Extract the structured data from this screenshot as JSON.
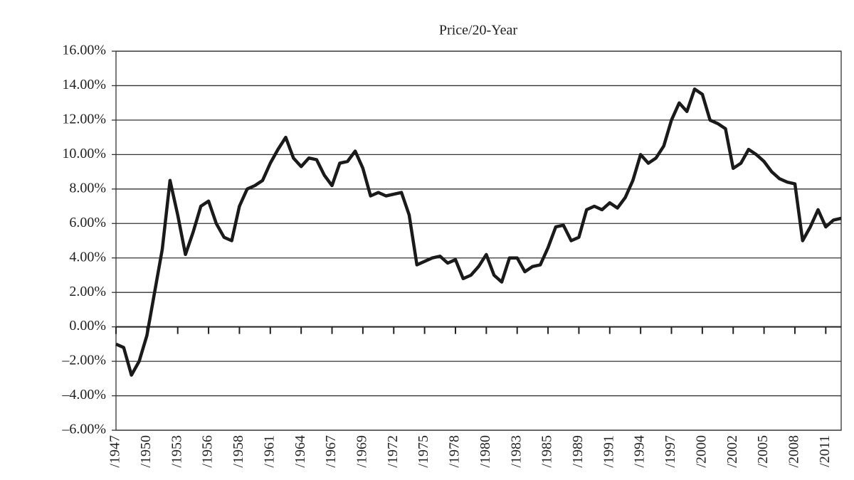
{
  "chart_data": {
    "type": "line",
    "title": "Price/20-Year",
    "categories": [
      "/1947",
      null,
      null,
      null,
      "/1950",
      null,
      null,
      null,
      "/1953",
      null,
      null,
      null,
      "/1956",
      null,
      null,
      null,
      "/1958",
      null,
      null,
      null,
      "/1961",
      null,
      null,
      null,
      "/1964",
      null,
      null,
      null,
      "/1967",
      null,
      null,
      null,
      "/1969",
      null,
      null,
      null,
      "/1972",
      null,
      null,
      null,
      "/1975",
      null,
      null,
      null,
      "/1978",
      null,
      null,
      null,
      "/1980",
      null,
      null,
      null,
      "/1983",
      null,
      null,
      null,
      "/1985",
      null,
      null,
      null,
      "/1989",
      null,
      null,
      null,
      "/1991",
      null,
      null,
      null,
      "/1994",
      null,
      null,
      null,
      "/1997",
      null,
      null,
      null,
      "/2000",
      null,
      null,
      null,
      "/2002",
      null,
      null,
      null,
      "/2005",
      null,
      null,
      null,
      "/2008",
      null,
      null,
      null,
      "/2011",
      null,
      null
    ],
    "values": [
      -1,
      -1.2,
      -2.8,
      -2.0,
      -0.5,
      2.0,
      4.5,
      8.5,
      6.5,
      4.2,
      5.5,
      7.0,
      7.3,
      6.0,
      5.2,
      5.0,
      7.0,
      8.0,
      8.2,
      8.5,
      9.5,
      10.3,
      11.0,
      9.8,
      9.3,
      9.8,
      9.7,
      8.8,
      8.2,
      9.5,
      9.6,
      10.2,
      9.2,
      7.6,
      7.8,
      7.6,
      7.7,
      7.8,
      6.5,
      3.6,
      3.8,
      4.0,
      4.1,
      3.7,
      3.9,
      2.8,
      3.0,
      3.5,
      4.2,
      3.0,
      2.6,
      4.0,
      4.0,
      3.2,
      3.5,
      3.6,
      4.6,
      5.8,
      5.9,
      5.0,
      5.2,
      6.8,
      7.0,
      6.8,
      7.2,
      6.9,
      7.5,
      8.5,
      10.0,
      9.5,
      9.8,
      10.5,
      12.0,
      13.0,
      12.5,
      13.8,
      13.5,
      12.0,
      11.8,
      11.5,
      9.2,
      9.5,
      10.3,
      10.0,
      9.6,
      9.0,
      8.6,
      8.4,
      8.3,
      5.0,
      5.8,
      6.8,
      5.8,
      6.2,
      6.3
    ],
    "color": "#1a1a1a",
    "ylim": [
      -6,
      16
    ],
    "yticks": [
      {
        "value": -6,
        "label": "–6.00%"
      },
      {
        "value": -4,
        "label": "–4.00%"
      },
      {
        "value": -2,
        "label": "–2.00%"
      },
      {
        "value": 0,
        "label": "0.00%"
      },
      {
        "value": 2,
        "label": "2.00%"
      },
      {
        "value": 4,
        "label": "4.00%"
      },
      {
        "value": 6,
        "label": "6.00%"
      },
      {
        "value": 8,
        "label": "8.00%"
      },
      {
        "value": 10,
        "label": "10.00%"
      },
      {
        "value": 12,
        "label": "12.00%"
      },
      {
        "value": 14,
        "label": "14.00%"
      },
      {
        "value": 16,
        "label": "16.00%"
      }
    ],
    "grid": true
  }
}
